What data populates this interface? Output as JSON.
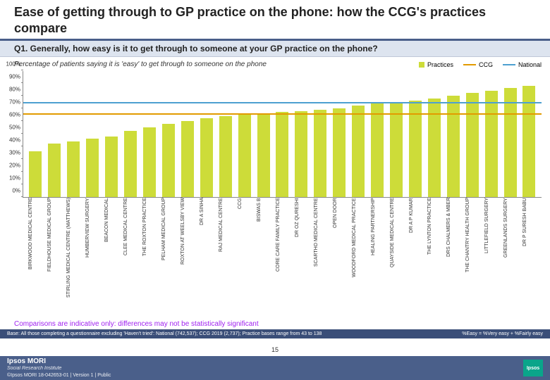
{
  "title": "Ease of getting through to GP practice on the phone: how the CCG's practices compare",
  "subtitle": "Q1. Generally, how easy is it to get through to someone at your GP practice on the phone?",
  "desc": "Percentage of patients saying it is 'easy' to get through to someone on the phone",
  "legend": {
    "practices": {
      "label": "Practices",
      "color": "#cddc39"
    },
    "ccg": {
      "label": "CCG",
      "color": "#e29a00"
    },
    "national": {
      "label": "National",
      "color": "#4da0d0"
    }
  },
  "chart": {
    "type": "bar",
    "ylim": [
      0,
      100
    ],
    "ytick_step": 10,
    "bar_color": "#cddc39",
    "ccg_line": {
      "value": 65,
      "color": "#e29a00"
    },
    "national_line": {
      "value": 74,
      "color": "#4da0d0"
    },
    "axis_fontsize": 8,
    "categories": [
      "BIRKWOOD MEDICAL CENTRE",
      "FIELDHOUSE MEDICAL GROUP",
      "STIRLING MEDICAL CENTRE (MATTHEWS)",
      "HUMBERVIEW SURGERY",
      "BEACON MEDICAL",
      "CLEE MEDICAL CENTRE",
      "THE ROXTON PRACTICE",
      "PELHAM MEDICAL GROUP",
      "ROXTON AT WEELSBY VIEW",
      "DR A SINHA",
      "RAJ MEDICAL CENTRE",
      "CCG",
      "BISWAS B",
      "CORE CARE FAMILY PRACTICE",
      "DR OZ QURESHI",
      "SCARTHO MEDICAL CENTRE",
      "OPEN DOOR",
      "WOODFORD MEDICAL PRACTICE",
      "HEALING PARTNERSHIP",
      "QUAYSIDE MEDICAL CENTRE",
      "DR A P KUMAR",
      "THE LYNTON PRACTICE",
      "DRS CHALMERS & MBER",
      "THE CHANTRY HEALTH GROUP",
      "LITTLEFIELD SURGERY",
      "GREENLANDS SURGERY",
      "DR P SURESH BABU"
    ],
    "values": [
      36,
      42,
      44,
      46,
      48,
      52,
      55,
      58,
      60,
      62,
      64,
      65,
      66,
      67,
      68,
      69,
      70,
      72,
      74,
      75,
      76,
      78,
      80,
      82,
      84,
      86,
      88
    ]
  },
  "comparison": "Comparisons are indicative only: differences may not be statistically significant",
  "base_left": "Base: All those completing a questionnaire excluding 'Haven't tried': National (742,537); CCG 2019 (2,737); Practice bases range from 43 to 138",
  "base_right": "%Easy = %Very easy + %Fairly easy",
  "footer": {
    "logo": "Ipsos MORI",
    "sub": "Social Research Institute",
    "meta": "©Ipsos MORI    18-042653-01 | Version 1 | Public",
    "ipsos": "Ipsos"
  },
  "page": "15"
}
